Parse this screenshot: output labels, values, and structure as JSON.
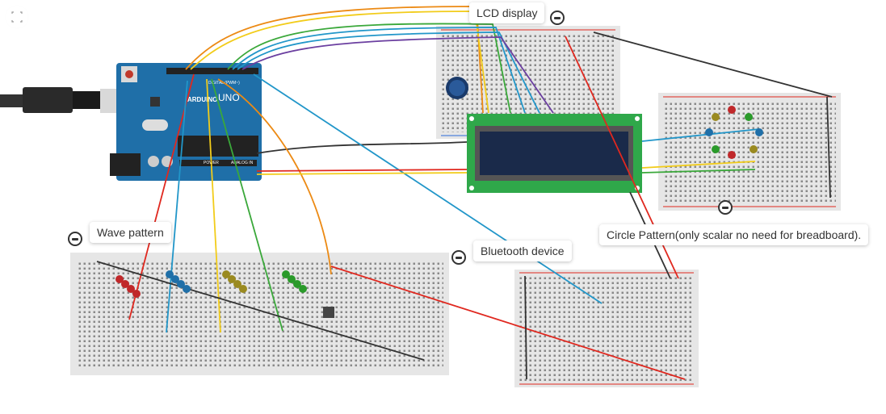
{
  "notes": {
    "lcd": "LCD display",
    "wave": "Wave pattern",
    "bluetooth": "Bluetooth device",
    "circle": "Circle Pattern(only scalar no need for breadboard)."
  },
  "arduino": {
    "brand": "ARDUINO",
    "model": "UNO",
    "digital": "DIGITAL (PWM~)",
    "power": "POWER",
    "analog": "ANALOG IN"
  },
  "icons": {
    "fit_view": "fit-view-icon",
    "collapse": "minus-circle-icon"
  },
  "colors": {
    "board_blue": "#1f6fa8",
    "breadboard": "#e6e6e6",
    "wire_red": "#e0281f",
    "wire_black": "#333333",
    "wire_yellow": "#f2cc1a",
    "wire_orange": "#ec8a14",
    "wire_green": "#3aa83a",
    "wire_blue": "#2196c9",
    "wire_purple": "#6b3fa0",
    "lcd_screen": "#1a2a4a",
    "lcd_green": "#2fa84a"
  }
}
